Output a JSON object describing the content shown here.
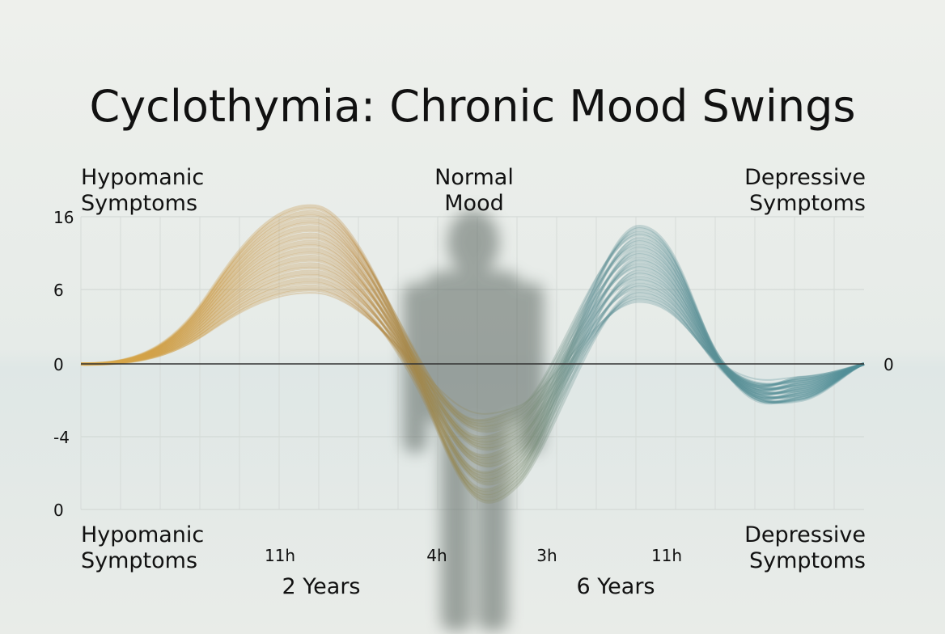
{
  "title": "Cyclothymia: Chronic Mood Swings",
  "top_left": [
    "Hypomanic",
    "Symptoms"
  ],
  "top_center": [
    "Normal",
    "Mood"
  ],
  "top_right": [
    "Depressive",
    "Symptoms"
  ],
  "bottom_left": [
    "Hypomanic",
    "Symptoms"
  ],
  "bottom_right": [
    "Depressive",
    "Symptoms"
  ],
  "y_labels": [
    "16",
    "6",
    "0",
    "-4",
    "0"
  ],
  "right_label": "0",
  "x_labels": [
    "11h",
    "4h",
    "3h",
    "11h"
  ],
  "periods": [
    "2 Years",
    "6 Years"
  ]
}
